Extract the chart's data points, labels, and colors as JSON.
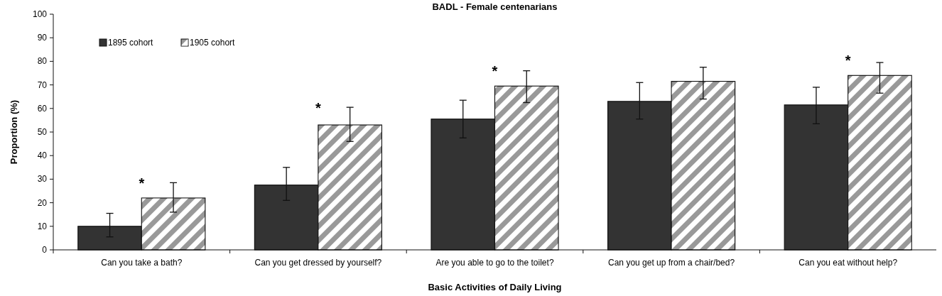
{
  "chart_data": {
    "type": "bar",
    "title": "BADL - Female centenarians",
    "xlabel": "Basic Activities of Daily Living",
    "ylabel": "Proportion (%)",
    "categories": [
      "Can you take a bath?",
      "Can you get dressed by yourself?",
      "Are you able to go to the toilet?",
      "Can you get up from a chair/bed?",
      "Can you eat without help?"
    ],
    "series": [
      {
        "name": "1895 cohort",
        "color": "#333333",
        "values": [
          10,
          27.5,
          55.5,
          63,
          61.5
        ],
        "errors": [
          [
            5.5,
            15.5
          ],
          [
            21,
            35
          ],
          [
            47.5,
            63.5
          ],
          [
            55.5,
            71
          ],
          [
            53.5,
            69
          ]
        ]
      },
      {
        "name": "1905 cohort",
        "color": "#999999",
        "values": [
          22,
          53,
          69.5,
          71.5,
          74
        ],
        "errors": [
          [
            16,
            28.5
          ],
          [
            46,
            60.5
          ],
          [
            62.5,
            76
          ],
          [
            64,
            77.5
          ],
          [
            66.5,
            79.5
          ]
        ]
      }
    ],
    "annotations": [
      {
        "text": "*",
        "x": "Can you take a bath?",
        "y": 22
      },
      {
        "text": "*",
        "x": "Can you get dressed by yourself?",
        "y": 53
      },
      {
        "text": "*",
        "x": "Are you able to go to the toilet?",
        "y": 69.5
      },
      {
        "text": "*",
        "x": "Can you eat without help?",
        "y": 74
      }
    ],
    "ylim": [
      0,
      100
    ],
    "yticks": [
      0,
      10,
      20,
      30,
      40,
      50,
      60,
      70,
      80,
      90,
      100
    ],
    "grid": false,
    "legend": "top left"
  }
}
